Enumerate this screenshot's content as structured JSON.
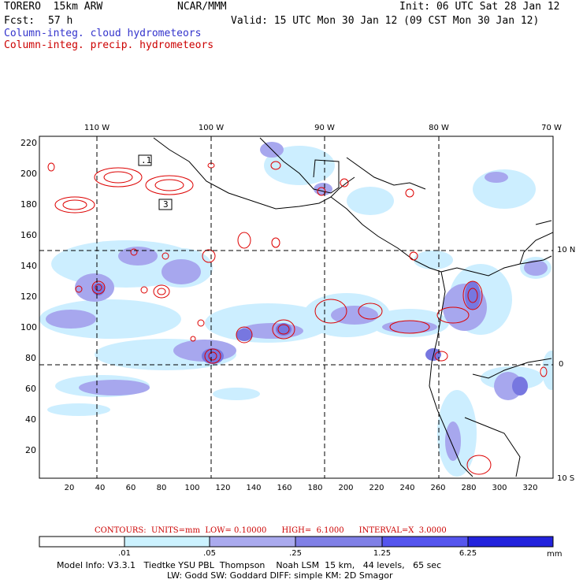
{
  "header": {
    "model": "TORERO  15km ARW",
    "center": "NCAR/MMM",
    "init": "Init: 06 UTC Sat 28 Jan 12",
    "fcst_label": "Fcst:",
    "fcst_value": "57 h",
    "valid": "Valid: 15 UTC Mon 30 Jan 12 (09 CST Mon 30 Jan 12)"
  },
  "legend_lines": {
    "cloud": "Column-integ. cloud hydrometeors",
    "precip": "Column-integ. precip. hydrometeors"
  },
  "map": {
    "top_lon_labels": [
      "110 W",
      "100 W",
      "90 W",
      "80 W",
      "70 W"
    ],
    "right_lat_labels": [
      "10 N",
      "0",
      "10 S"
    ],
    "y_ticks": [
      "220",
      "200",
      "180",
      "160",
      "140",
      "120",
      "100",
      "80",
      "60",
      "40",
      "20"
    ],
    "x_ticks": [
      "20",
      "40",
      "60",
      "80",
      "100",
      "120",
      "140",
      "160",
      "180",
      "200",
      "220",
      "240",
      "260",
      "280",
      "300",
      "320"
    ],
    "contour_labels": [
      ".1",
      "3"
    ],
    "colors": {
      "cloud_light": "#cceeff",
      "cloud_mid": "#a7a7ee",
      "cloud_dark": "#7777e0",
      "precip_contour": "#dd0000"
    }
  },
  "contour_info": "CONTOURS:  UNITS=mm  LOW= 0.10000      HIGH=  6.1000      INTERVAL=X  3.0000",
  "colorbar": {
    "labels": [
      ".01",
      ".05",
      ".25",
      "1.25",
      "6.25"
    ],
    "unit": "mm",
    "colors": [
      "#ffffff",
      "#ccf2ff",
      "#aaaaee",
      "#8080e6",
      "#5555ee",
      "#2222dd"
    ]
  },
  "footer": {
    "line1": "Model Info: V3.3.1   Tiedtke YSU PBL  Thompson    Noah LSM  15 km,   44 levels,   65 sec",
    "line2": "LW: Godd SW: Goddard DIFF: simple KM: 2D Smagor"
  }
}
